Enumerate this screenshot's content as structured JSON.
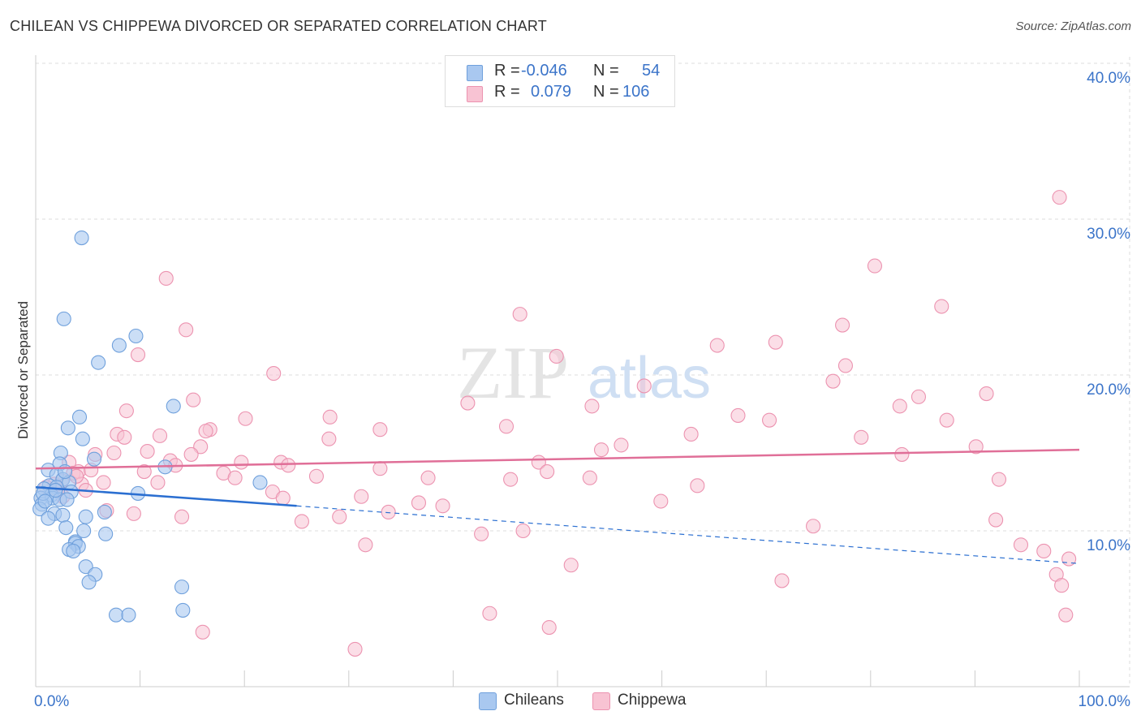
{
  "header": {
    "title": "CHILEAN VS CHIPPEWA DIVORCED OR SEPARATED CORRELATION CHART",
    "source": "Source: ZipAtlas.com"
  },
  "legend_top": {
    "rows": [
      {
        "r_label": "R =",
        "r_value": "-0.046",
        "n_label": "N =",
        "n_value": "54"
      },
      {
        "r_label": "R =",
        "r_value": "0.079",
        "n_label": "N =",
        "n_value": "106"
      }
    ]
  },
  "legend_bottom": {
    "items": [
      {
        "label": "Chileans"
      },
      {
        "label": "Chippewa"
      }
    ]
  },
  "watermark": {
    "zip": "ZIP",
    "atlas": "atlas"
  },
  "colors": {
    "chileans_fill": "#a9c8f0",
    "chileans_stroke": "#6fa0dc",
    "chileans_line": "#2b6fd1",
    "chippewa_fill": "#f8c3d3",
    "chippewa_stroke": "#ec93b0",
    "chippewa_line": "#e06f98",
    "tick_label": "#3b74c9",
    "grid": "#dddddd"
  },
  "chart_data": {
    "type": "scatter",
    "title": "CHILEAN VS CHIPPEWA DIVORCED OR SEPARATED CORRELATION CHART",
    "xlabel": "",
    "ylabel": "Divorced or Separated",
    "xlim": [
      0,
      100
    ],
    "ylim": [
      0,
      40
    ],
    "x_tick_labels": [
      "0.0%",
      "100.0%"
    ],
    "y_ticks": [
      10,
      20,
      30,
      40
    ],
    "y_tick_labels": [
      "10.0%",
      "20.0%",
      "30.0%",
      "40.0%"
    ],
    "grid": true,
    "legend": "top-center",
    "series": [
      {
        "name": "Chileans",
        "r": -0.046,
        "n": 54,
        "trend": {
          "x": [
            0,
            25
          ],
          "y": [
            12.8,
            11.6
          ]
        },
        "trend_extension": {
          "x": [
            25,
            100
          ],
          "y": [
            11.6,
            7.9
          ]
        },
        "points": [
          [
            4.4,
            28.8
          ],
          [
            2.7,
            23.6
          ],
          [
            9.6,
            22.5
          ],
          [
            8.0,
            21.9
          ],
          [
            6.0,
            20.8
          ],
          [
            13.2,
            18.0
          ],
          [
            4.2,
            17.3
          ],
          [
            3.1,
            16.6
          ],
          [
            4.5,
            15.9
          ],
          [
            2.4,
            15.0
          ],
          [
            5.6,
            14.6
          ],
          [
            2.3,
            14.3
          ],
          [
            12.4,
            14.1
          ],
          [
            1.2,
            13.9
          ],
          [
            2.0,
            13.6
          ],
          [
            2.6,
            13.3
          ],
          [
            3.2,
            13.1
          ],
          [
            21.5,
            13.1
          ],
          [
            1.3,
            12.9
          ],
          [
            0.8,
            12.7
          ],
          [
            2.0,
            12.8
          ],
          [
            3.4,
            12.5
          ],
          [
            9.8,
            12.4
          ],
          [
            1.5,
            12.3
          ],
          [
            0.5,
            12.1
          ],
          [
            1.6,
            12.1
          ],
          [
            2.3,
            12.0
          ],
          [
            3.0,
            12.0
          ],
          [
            0.6,
            11.7
          ],
          [
            0.4,
            11.4
          ],
          [
            1.8,
            11.1
          ],
          [
            2.6,
            11.0
          ],
          [
            6.6,
            11.2
          ],
          [
            4.8,
            10.9
          ],
          [
            1.2,
            10.8
          ],
          [
            2.9,
            10.2
          ],
          [
            4.6,
            10.0
          ],
          [
            6.7,
            9.8
          ],
          [
            3.8,
            9.3
          ],
          [
            3.8,
            9.2
          ],
          [
            4.1,
            9.0
          ],
          [
            3.2,
            8.8
          ],
          [
            3.6,
            8.7
          ],
          [
            4.8,
            7.7
          ],
          [
            5.7,
            7.2
          ],
          [
            5.1,
            6.7
          ],
          [
            14.0,
            6.4
          ],
          [
            7.7,
            4.6
          ],
          [
            8.9,
            4.6
          ],
          [
            14.1,
            4.9
          ],
          [
            0.7,
            12.4
          ],
          [
            1.9,
            12.6
          ],
          [
            2.8,
            13.8
          ],
          [
            0.9,
            11.9
          ]
        ]
      },
      {
        "name": "Chippewa",
        "r": 0.079,
        "n": 106,
        "trend": {
          "x": [
            0,
            100
          ],
          "y": [
            14.0,
            15.2
          ]
        },
        "points": [
          [
            98.1,
            31.4
          ],
          [
            12.5,
            26.2
          ],
          [
            80.4,
            27.0
          ],
          [
            86.8,
            24.4
          ],
          [
            46.4,
            23.9
          ],
          [
            14.4,
            22.9
          ],
          [
            77.3,
            23.2
          ],
          [
            9.8,
            21.3
          ],
          [
            49.9,
            21.2
          ],
          [
            70.9,
            22.1
          ],
          [
            65.3,
            21.9
          ],
          [
            77.6,
            20.6
          ],
          [
            22.8,
            20.1
          ],
          [
            58.3,
            19.3
          ],
          [
            76.4,
            19.6
          ],
          [
            15.1,
            18.4
          ],
          [
            41.4,
            18.2
          ],
          [
            53.3,
            18.0
          ],
          [
            82.8,
            18.0
          ],
          [
            84.6,
            18.6
          ],
          [
            91.1,
            18.8
          ],
          [
            8.7,
            17.7
          ],
          [
            20.1,
            17.2
          ],
          [
            28.2,
            17.3
          ],
          [
            67.3,
            17.4
          ],
          [
            70.3,
            17.1
          ],
          [
            87.3,
            17.1
          ],
          [
            45.1,
            16.7
          ],
          [
            33.0,
            16.5
          ],
          [
            16.7,
            16.5
          ],
          [
            16.3,
            16.4
          ],
          [
            7.8,
            16.2
          ],
          [
            11.9,
            16.1
          ],
          [
            8.5,
            16.0
          ],
          [
            62.8,
            16.2
          ],
          [
            79.1,
            16.0
          ],
          [
            28.1,
            15.9
          ],
          [
            15.8,
            15.4
          ],
          [
            56.1,
            15.5
          ],
          [
            54.2,
            15.2
          ],
          [
            10.7,
            15.1
          ],
          [
            14.9,
            14.9
          ],
          [
            7.5,
            15.0
          ],
          [
            5.7,
            14.9
          ],
          [
            90.1,
            15.4
          ],
          [
            83.0,
            14.9
          ],
          [
            3.2,
            14.4
          ],
          [
            19.7,
            14.4
          ],
          [
            12.9,
            14.5
          ],
          [
            23.5,
            14.4
          ],
          [
            24.2,
            14.2
          ],
          [
            48.2,
            14.4
          ],
          [
            13.4,
            14.2
          ],
          [
            10.4,
            13.8
          ],
          [
            3.6,
            13.7
          ],
          [
            4.1,
            13.8
          ],
          [
            18.0,
            13.7
          ],
          [
            33.0,
            14.0
          ],
          [
            49.0,
            13.8
          ],
          [
            19.1,
            13.4
          ],
          [
            26.9,
            13.5
          ],
          [
            37.6,
            13.4
          ],
          [
            45.5,
            13.3
          ],
          [
            53.1,
            13.4
          ],
          [
            92.3,
            13.3
          ],
          [
            2.5,
            13.2
          ],
          [
            6.5,
            13.1
          ],
          [
            4.4,
            13.0
          ],
          [
            11.7,
            13.1
          ],
          [
            63.4,
            12.9
          ],
          [
            2.1,
            12.6
          ],
          [
            4.8,
            12.6
          ],
          [
            22.7,
            12.5
          ],
          [
            23.7,
            12.1
          ],
          [
            31.2,
            12.2
          ],
          [
            36.7,
            11.8
          ],
          [
            39.0,
            11.6
          ],
          [
            59.9,
            11.9
          ],
          [
            6.8,
            11.3
          ],
          [
            33.8,
            11.2
          ],
          [
            9.4,
            11.1
          ],
          [
            14.0,
            10.9
          ],
          [
            29.1,
            10.9
          ],
          [
            25.5,
            10.6
          ],
          [
            46.7,
            10.0
          ],
          [
            74.5,
            10.3
          ],
          [
            92.0,
            10.7
          ],
          [
            42.7,
            9.8
          ],
          [
            31.6,
            9.1
          ],
          [
            94.4,
            9.1
          ],
          [
            96.6,
            8.7
          ],
          [
            99.0,
            8.2
          ],
          [
            51.3,
            7.8
          ],
          [
            97.8,
            7.2
          ],
          [
            71.5,
            6.8
          ],
          [
            98.3,
            6.5
          ],
          [
            43.5,
            4.7
          ],
          [
            98.7,
            4.6
          ],
          [
            16.0,
            3.5
          ],
          [
            49.2,
            3.8
          ],
          [
            30.6,
            2.4
          ],
          [
            1.8,
            13.0
          ],
          [
            1.0,
            12.8
          ],
          [
            3.9,
            13.5
          ],
          [
            5.3,
            13.9
          ],
          [
            2.6,
            12.2
          ]
        ]
      }
    ]
  }
}
